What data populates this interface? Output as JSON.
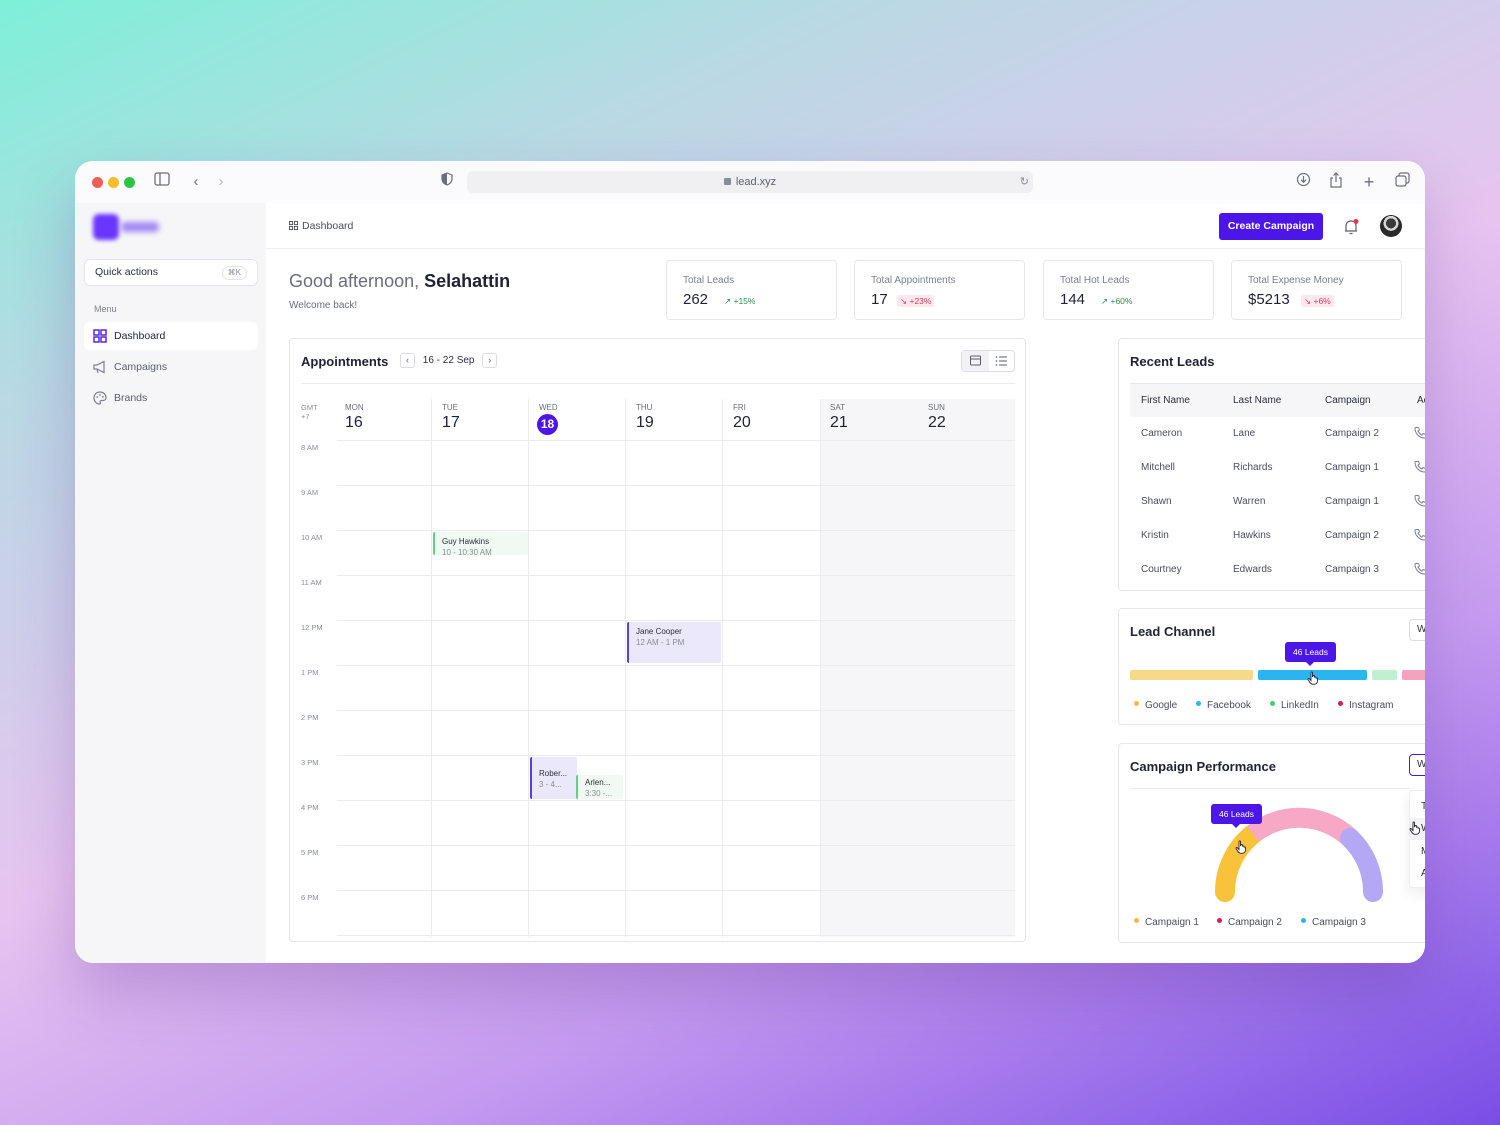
{
  "browser": {
    "url": "lead.xyz"
  },
  "sidebar": {
    "quick_actions": {
      "label": "Quick actions",
      "shortcut": "⌘K"
    },
    "menu_label": "Menu",
    "items": [
      {
        "label": "Dashboard",
        "active": true,
        "icon": "grid-icon"
      },
      {
        "label": "Campaigns",
        "active": false,
        "icon": "megaphone-icon"
      },
      {
        "label": "Brands",
        "active": false,
        "icon": "palette-icon"
      }
    ]
  },
  "header": {
    "breadcrumb": "Dashboard",
    "create_button": "Create Campaign",
    "notification_badge": true,
    "accent": "#4d16e8"
  },
  "greeting": {
    "prefix": "Good afternoon,",
    "name": "Selahattin",
    "subtitle": "Welcome back!"
  },
  "stats": [
    {
      "label": "Total Leads",
      "value": "262",
      "change": "+15%",
      "trend": "up"
    },
    {
      "label": "Total Appointments",
      "value": "17",
      "change": "+23%",
      "trend": "down"
    },
    {
      "label": "Total Hot Leads",
      "value": "144",
      "change": "+60%",
      "trend": "up"
    },
    {
      "label": "Total Expense Money",
      "value": "$5213",
      "change": "+6%",
      "trend": "down"
    }
  ],
  "appointments": {
    "title": "Appointments",
    "range": "16 - 22 Sep",
    "timezone": [
      "GMT",
      "+7"
    ],
    "days": [
      {
        "name": "MON",
        "date": "16",
        "today": false,
        "weekend": false
      },
      {
        "name": "TUE",
        "date": "17",
        "today": false,
        "weekend": false
      },
      {
        "name": "WED",
        "date": "18",
        "today": true,
        "weekend": false
      },
      {
        "name": "THU",
        "date": "19",
        "today": false,
        "weekend": false
      },
      {
        "name": "FRI",
        "date": "20",
        "today": false,
        "weekend": false
      },
      {
        "name": "SAT",
        "date": "21",
        "today": false,
        "weekend": true
      },
      {
        "name": "SUN",
        "date": "22",
        "today": false,
        "weekend": true
      }
    ],
    "hours": [
      "8 AM",
      "9 AM",
      "10 AM",
      "11 AM",
      "12 PM",
      "1 PM",
      "2 PM",
      "3 PM",
      "4 PM",
      "5 PM",
      "6 PM"
    ],
    "events": [
      {
        "name": "Guy Hawkins",
        "time": "10 - 10:30 AM",
        "color": "green"
      },
      {
        "name": "Jane Cooper",
        "time": "12 AM - 1 PM",
        "color": "purple"
      },
      {
        "name": "Rober...",
        "time": "3 - 4...",
        "color": "purple"
      },
      {
        "name": "Arlen...",
        "time": "3:30 -...",
        "color": "green"
      }
    ]
  },
  "recent_leads": {
    "title": "Recent Leads",
    "columns": [
      "First Name",
      "Last Name",
      "Campaign",
      "Action"
    ],
    "rows": [
      {
        "first": "Cameron",
        "last": "Lane",
        "campaign": "Campaign 2"
      },
      {
        "first": "Mitchell",
        "last": "Richards",
        "campaign": "Campaign 1"
      },
      {
        "first": "Shawn",
        "last": "Warren",
        "campaign": "Campaign 1"
      },
      {
        "first": "Kristin",
        "last": "Hawkins",
        "campaign": "Campaign 2"
      },
      {
        "first": "Courtney",
        "last": "Edwards",
        "campaign": "Campaign 3"
      }
    ]
  },
  "lead_channel": {
    "title": "Lead Channel",
    "period": "Week",
    "tooltip": "46 Leads",
    "channels": [
      {
        "name": "Google",
        "color": "#f6d98a",
        "dot": "#f6b93b"
      },
      {
        "name": "Facebook",
        "color": "#29b6f0",
        "dot": "#29b6f0"
      },
      {
        "name": "LinkedIn",
        "color": "#bff0cf",
        "dot": "#3ccf72"
      },
      {
        "name": "Instagram",
        "color": "#f4a3bf",
        "dot": "#d81b60"
      }
    ]
  },
  "campaign_performance": {
    "title": "Campaign Performance",
    "period": "Week",
    "tooltip": "46 Leads",
    "dropdown_options": [
      "Today",
      "Week",
      "Month",
      "All"
    ],
    "hovered_option": "Week",
    "campaigns": [
      {
        "name": "Campaign 1",
        "color": "#f8c33a",
        "dot": "#f6b93b"
      },
      {
        "name": "Campaign 2",
        "color": "#f6a8c4",
        "dot": "#d81b60"
      },
      {
        "name": "Campaign 3",
        "color": "#b4a8f4",
        "dot": "#29b6f0"
      }
    ]
  }
}
